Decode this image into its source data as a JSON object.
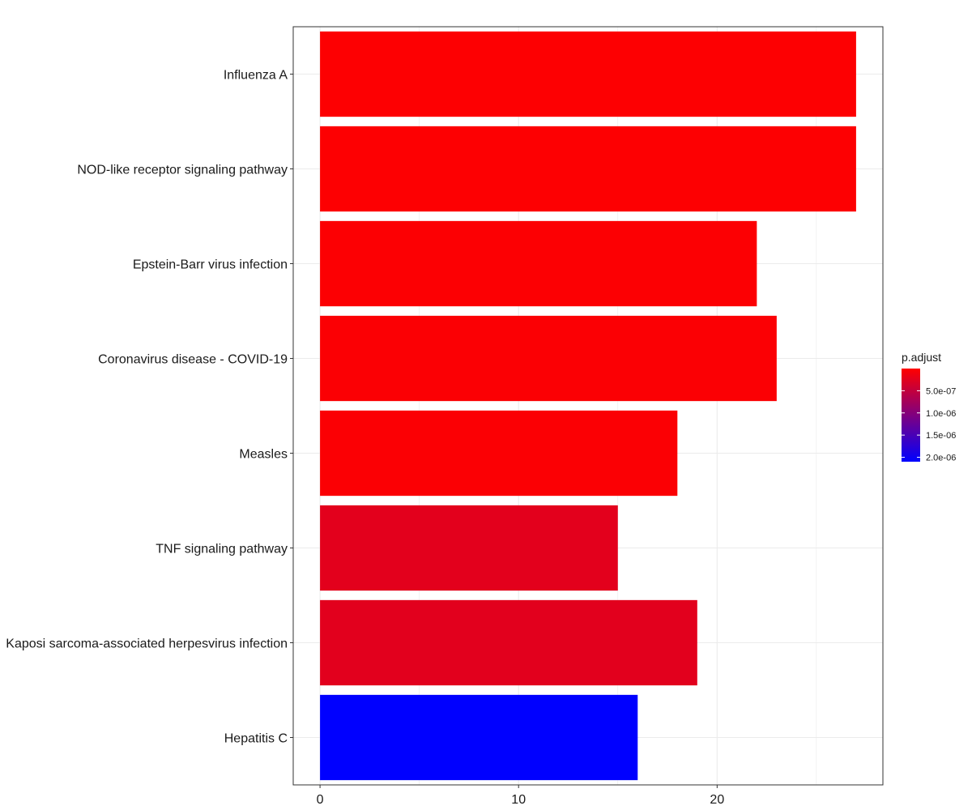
{
  "chart_data": {
    "type": "bar",
    "orientation": "horizontal",
    "categories": [
      "Influenza A",
      "NOD-like receptor signaling pathway",
      "Epstein-Barr virus infection",
      "Coronavirus disease - COVID-19",
      "Measles",
      "TNF signaling pathway",
      "Kaposi sarcoma-associated herpesvirus infection",
      "Hepatitis C"
    ],
    "values": [
      27,
      27,
      22,
      23,
      18,
      15,
      19,
      16
    ],
    "p_adjust": [
      2e-08,
      2e-08,
      2.5e-08,
      3e-08,
      3e-08,
      2.3e-07,
      2.4e-07,
      2.1e-06
    ],
    "xlim": [
      -1.35,
      28.35
    ],
    "xticks": [
      0,
      10,
      20
    ],
    "grid": true,
    "legend": {
      "title": "p.adjust",
      "placement": "right",
      "ticks": [
        "5.0e-07",
        "1.0e-06",
        "1.5e-06",
        "2.0e-06"
      ],
      "tick_values": [
        5e-07,
        1e-06,
        1.5e-06,
        2e-06
      ],
      "range": [
        0,
        2.1e-06
      ],
      "low_color": "#ff0000",
      "high_color": "#0000ff"
    }
  }
}
